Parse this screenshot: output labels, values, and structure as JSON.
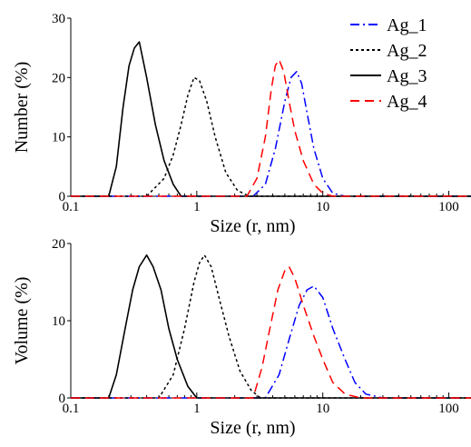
{
  "chart_data": [
    {
      "type": "line",
      "ylabel": "Number (%)",
      "xlabel": "Size (r, nm)",
      "xscale": "log",
      "xlim": [
        0.1,
        150
      ],
      "ylim": [
        0,
        30
      ],
      "xticks": [
        "0.1",
        "1",
        "10",
        "100"
      ],
      "yticks": [
        "0",
        "10",
        "20",
        "30"
      ],
      "legend_position": "top-right",
      "series": [
        {
          "name": "Ag_1",
          "color": "#0000ff",
          "dash": "dash-dot",
          "x": [
            2.8,
            3.5,
            4.2,
            5.0,
            5.6,
            6.2,
            6.8,
            7.5,
            8.5,
            10.0,
            12.0,
            15.0
          ],
          "y": [
            0,
            2,
            8,
            16,
            20,
            21,
            19,
            14,
            8,
            3,
            0.5,
            0
          ]
        },
        {
          "name": "Ag_2",
          "color": "#000000",
          "dash": "dotted",
          "x": [
            0.4,
            0.55,
            0.65,
            0.75,
            0.85,
            0.95,
            1.05,
            1.2,
            1.4,
            1.7,
            2.1,
            2.6
          ],
          "y": [
            0,
            3,
            7,
            12,
            17,
            20,
            19.5,
            16,
            10,
            4,
            1,
            0
          ]
        },
        {
          "name": "Ag_3",
          "color": "#000000",
          "dash": "solid",
          "x": [
            0.2,
            0.23,
            0.26,
            0.29,
            0.32,
            0.35,
            0.4,
            0.47,
            0.55,
            0.65,
            0.75
          ],
          "y": [
            0,
            5,
            15,
            22,
            25,
            26,
            20,
            12,
            6,
            2,
            0
          ]
        },
        {
          "name": "Ag_4",
          "color": "#ff0000",
          "dash": "dashed",
          "x": [
            2.5,
            3.0,
            3.5,
            3.9,
            4.2,
            4.5,
            4.9,
            5.4,
            6.0,
            7.0,
            8.5,
            10.0,
            12.0
          ],
          "y": [
            0,
            3,
            10,
            18,
            22,
            23,
            21,
            16,
            11,
            6,
            2,
            0.5,
            0
          ]
        }
      ]
    },
    {
      "type": "line",
      "ylabel": "Volume (%)",
      "xlabel": "Size (r, nm)",
      "xscale": "log",
      "xlim": [
        0.1,
        150
      ],
      "ylim": [
        0,
        20
      ],
      "xticks": [
        "0.1",
        "1",
        "10",
        "100"
      ],
      "yticks": [
        "0",
        "10",
        "20"
      ],
      "series": [
        {
          "name": "Ag_1",
          "color": "#0000ff",
          "dash": "dash-dot",
          "x": [
            3.5,
            4.5,
            5.5,
            6.5,
            7.5,
            8.5,
            10.0,
            12.0,
            15.0,
            18.0,
            22.0,
            30.0
          ],
          "y": [
            0,
            3,
            8,
            12,
            14,
            14.5,
            13,
            9,
            5,
            2,
            0.5,
            0
          ]
        },
        {
          "name": "Ag_2",
          "color": "#000000",
          "dash": "dotted",
          "x": [
            0.5,
            0.65,
            0.8,
            0.95,
            1.05,
            1.15,
            1.3,
            1.5,
            1.8,
            2.2,
            2.7,
            3.2
          ],
          "y": [
            0,
            3,
            9,
            15,
            17.5,
            18.5,
            17,
            13,
            8,
            3.5,
            1,
            0
          ]
        },
        {
          "name": "Ag_3",
          "color": "#000000",
          "dash": "solid",
          "x": [
            0.2,
            0.23,
            0.27,
            0.31,
            0.35,
            0.4,
            0.45,
            0.52,
            0.6,
            0.7,
            0.85,
            1.0
          ],
          "y": [
            0,
            3,
            9,
            14,
            17,
            18.5,
            17,
            14,
            9,
            5,
            1.5,
            0
          ]
        },
        {
          "name": "Ag_4",
          "color": "#ff0000",
          "dash": "dashed",
          "x": [
            2.8,
            3.3,
            3.8,
            4.4,
            5.0,
            5.4,
            6.0,
            7.0,
            8.5,
            10.0,
            12.0,
            15.0,
            20.0
          ],
          "y": [
            0,
            4,
            9,
            14,
            16.5,
            17,
            15.5,
            12,
            8,
            5,
            2,
            0.5,
            0
          ]
        }
      ]
    }
  ]
}
